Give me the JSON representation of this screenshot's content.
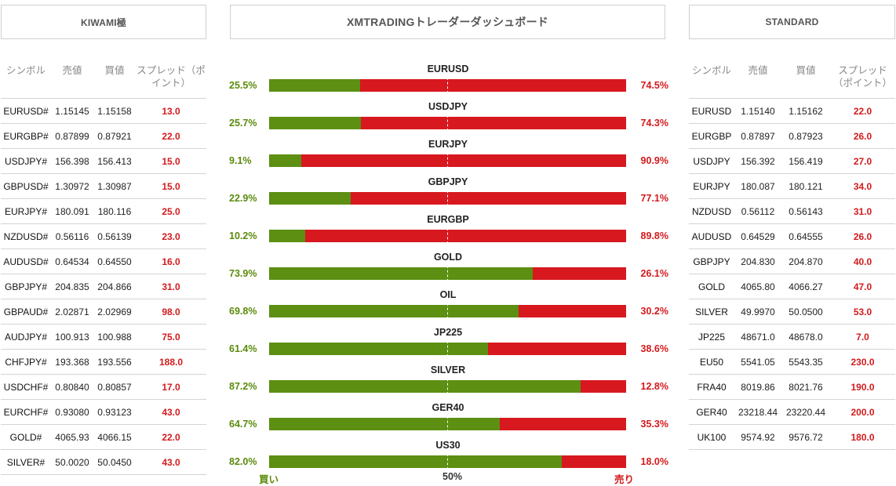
{
  "left_panel": {
    "title": "KIWAMI極",
    "headers": [
      "シンボル",
      "売値",
      "買値",
      "スプレッド（ポイント）"
    ],
    "rows": [
      {
        "symbol": "EURUSD#",
        "bid": "1.15145",
        "ask": "1.15158",
        "spread": "13.0"
      },
      {
        "symbol": "EURGBP#",
        "bid": "0.87899",
        "ask": "0.87921",
        "spread": "22.0"
      },
      {
        "symbol": "USDJPY#",
        "bid": "156.398",
        "ask": "156.413",
        "spread": "15.0"
      },
      {
        "symbol": "GBPUSD#",
        "bid": "1.30972",
        "ask": "1.30987",
        "spread": "15.0"
      },
      {
        "symbol": "EURJPY#",
        "bid": "180.091",
        "ask": "180.116",
        "spread": "25.0"
      },
      {
        "symbol": "NZDUSD#",
        "bid": "0.56116",
        "ask": "0.56139",
        "spread": "23.0"
      },
      {
        "symbol": "AUDUSD#",
        "bid": "0.64534",
        "ask": "0.64550",
        "spread": "16.0"
      },
      {
        "symbol": "GBPJPY#",
        "bid": "204.835",
        "ask": "204.866",
        "spread": "31.0"
      },
      {
        "symbol": "GBPAUD#",
        "bid": "2.02871",
        "ask": "2.02969",
        "spread": "98.0"
      },
      {
        "symbol": "AUDJPY#",
        "bid": "100.913",
        "ask": "100.988",
        "spread": "75.0"
      },
      {
        "symbol": "CHFJPY#",
        "bid": "193.368",
        "ask": "193.556",
        "spread": "188.0"
      },
      {
        "symbol": "USDCHF#",
        "bid": "0.80840",
        "ask": "0.80857",
        "spread": "17.0"
      },
      {
        "symbol": "EURCHF#",
        "bid": "0.93080",
        "ask": "0.93123",
        "spread": "43.0"
      },
      {
        "symbol": "GOLD#",
        "bid": "4065.93",
        "ask": "4066.15",
        "spread": "22.0"
      },
      {
        "symbol": "SILVER#",
        "bid": "50.0020",
        "ask": "50.0450",
        "spread": "43.0"
      }
    ]
  },
  "middle_panel": {
    "title": "XMTRADINGトレーダーダッシュボード",
    "instruments": [
      {
        "symbol": "EURUSD",
        "buy": 25.5,
        "buy_label": "25.5%",
        "sell_label": "74.5%"
      },
      {
        "symbol": "USDJPY",
        "buy": 25.7,
        "buy_label": "25.7%",
        "sell_label": "74.3%"
      },
      {
        "symbol": "EURJPY",
        "buy": 9.1,
        "buy_label": "9.1%",
        "sell_label": "90.9%"
      },
      {
        "symbol": "GBPJPY",
        "buy": 22.9,
        "buy_label": "22.9%",
        "sell_label": "77.1%"
      },
      {
        "symbol": "EURGBP",
        "buy": 10.2,
        "buy_label": "10.2%",
        "sell_label": "89.8%"
      },
      {
        "symbol": "GOLD",
        "buy": 73.9,
        "buy_label": "73.9%",
        "sell_label": "26.1%"
      },
      {
        "symbol": "OIL",
        "buy": 69.8,
        "buy_label": "69.8%",
        "sell_label": "30.2%"
      },
      {
        "symbol": "JP225",
        "buy": 61.4,
        "buy_label": "61.4%",
        "sell_label": "38.6%"
      },
      {
        "symbol": "SILVER",
        "buy": 87.2,
        "buy_label": "87.2%",
        "sell_label": "12.8%"
      },
      {
        "symbol": "GER40",
        "buy": 64.7,
        "buy_label": "64.7%",
        "sell_label": "35.3%"
      },
      {
        "symbol": "US30",
        "buy": 82.0,
        "buy_label": "82.0%",
        "sell_label": "18.0%"
      }
    ],
    "footer": {
      "buy_label": "買い",
      "mid_label": "50%",
      "sell_label": "売り"
    },
    "colors": {
      "buy": "#5c8f12",
      "sell": "#d7181f"
    }
  },
  "right_panel": {
    "title": "STANDARD",
    "headers": [
      "シンボル",
      "売値",
      "買値",
      "スプレッド（ポイント）"
    ],
    "rows": [
      {
        "symbol": "EURUSD",
        "bid": "1.15140",
        "ask": "1.15162",
        "spread": "22.0"
      },
      {
        "symbol": "EURGBP",
        "bid": "0.87897",
        "ask": "0.87923",
        "spread": "26.0"
      },
      {
        "symbol": "USDJPY",
        "bid": "156.392",
        "ask": "156.419",
        "spread": "27.0"
      },
      {
        "symbol": "EURJPY",
        "bid": "180.087",
        "ask": "180.121",
        "spread": "34.0"
      },
      {
        "symbol": "NZDUSD",
        "bid": "0.56112",
        "ask": "0.56143",
        "spread": "31.0"
      },
      {
        "symbol": "AUDUSD",
        "bid": "0.64529",
        "ask": "0.64555",
        "spread": "26.0"
      },
      {
        "symbol": "GBPJPY",
        "bid": "204.830",
        "ask": "204.870",
        "spread": "40.0"
      },
      {
        "symbol": "GOLD",
        "bid": "4065.80",
        "ask": "4066.27",
        "spread": "47.0"
      },
      {
        "symbol": "SILVER",
        "bid": "49.9970",
        "ask": "50.0500",
        "spread": "53.0"
      },
      {
        "symbol": "JP225",
        "bid": "48671.0",
        "ask": "48678.0",
        "spread": "7.0"
      },
      {
        "symbol": "EU50",
        "bid": "5541.05",
        "ask": "5543.35",
        "spread": "230.0"
      },
      {
        "symbol": "FRA40",
        "bid": "8019.86",
        "ask": "8021.76",
        "spread": "190.0"
      },
      {
        "symbol": "GER40",
        "bid": "23218.44",
        "ask": "23220.44",
        "spread": "200.0"
      },
      {
        "symbol": "UK100",
        "bid": "9574.92",
        "ask": "9576.72",
        "spread": "180.0"
      }
    ]
  }
}
